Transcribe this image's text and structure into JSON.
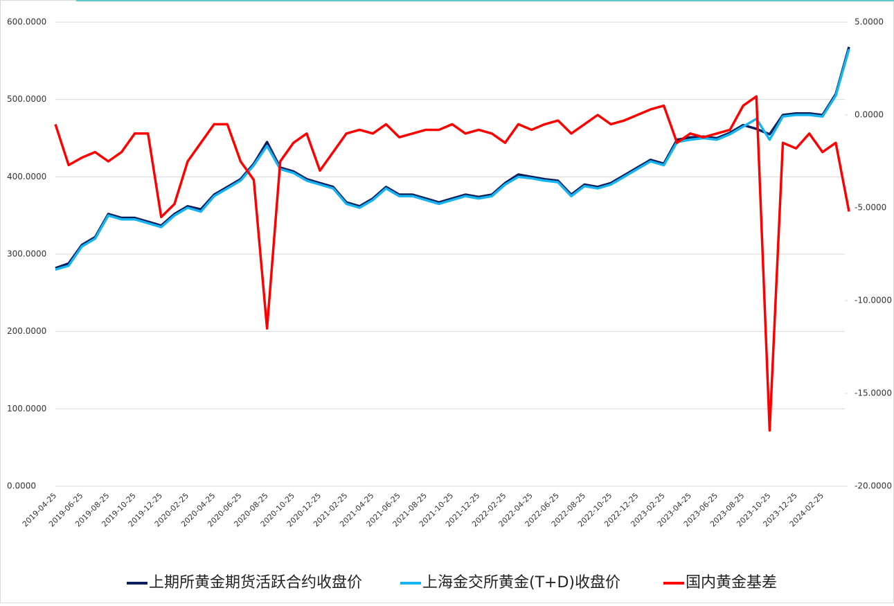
{
  "chart_data": {
    "type": "line",
    "categories": [
      "2019-04-25",
      null,
      "2019-06-25",
      null,
      "2019-08-25",
      null,
      "2019-10-25",
      null,
      "2019-12-25",
      null,
      "2020-02-25",
      null,
      "2020-04-25",
      null,
      "2020-06-25",
      null,
      "2020-08-25",
      null,
      "2020-10-25",
      null,
      "2020-12-25",
      null,
      "2021-02-25",
      null,
      "2021-04-25",
      null,
      "2021-06-25",
      null,
      "2021-08-25",
      null,
      "2021-10-25",
      null,
      "2021-12-25",
      null,
      "2022-02-25",
      null,
      "2022-04-25",
      null,
      "2022-06-25",
      null,
      "2022-08-25",
      null,
      "2022-10-25",
      null,
      "2022-12-25",
      null,
      "2023-02-25",
      null,
      "2023-04-25",
      null,
      "2023-06-25",
      null,
      "2023-08-25",
      null,
      "2023-10-25",
      null,
      "2023-12-25",
      null,
      "2024-02-25",
      null,
      null
    ],
    "series": [
      {
        "name": "上期所黄金期货活跃合约收盘价",
        "color": "#0d1f5c",
        "axis": "y",
        "values": [
          282,
          288,
          312,
          322,
          352,
          347,
          347,
          342,
          337,
          352,
          362,
          358,
          377,
          387,
          397,
          417,
          445,
          412,
          407,
          397,
          392,
          387,
          367,
          362,
          372,
          387,
          377,
          377,
          372,
          367,
          372,
          377,
          374,
          377,
          392,
          403,
          400,
          397,
          395,
          377,
          390,
          387,
          392,
          402,
          412,
          422,
          417,
          448,
          451,
          452,
          450,
          457,
          467,
          462,
          455,
          480,
          482,
          482,
          480,
          507,
          568
        ]
      },
      {
        "name": "上海金交所黄金(T+D)收盘价",
        "color": "#16b4f0",
        "axis": "y",
        "values": [
          280,
          285,
          310,
          320,
          350,
          345,
          345,
          340,
          335,
          350,
          360,
          355,
          375,
          385,
          395,
          415,
          440,
          410,
          405,
          395,
          390,
          385,
          365,
          360,
          370,
          385,
          375,
          375,
          370,
          365,
          370,
          375,
          372,
          375,
          390,
          400,
          398,
          395,
          393,
          375,
          388,
          385,
          390,
          400,
          410,
          420,
          415,
          445,
          448,
          450,
          448,
          455,
          465,
          475,
          448,
          478,
          480,
          480,
          478,
          505,
          565
        ]
      },
      {
        "name": "国内黄金基差",
        "color": "#ff0000",
        "axis": "y2",
        "values": [
          -0.5,
          -2.7,
          -2.3,
          -2.0,
          -2.5,
          -2.0,
          -1.0,
          -1.0,
          -5.5,
          -4.8,
          -2.5,
          -1.5,
          -0.5,
          -0.5,
          -2.5,
          -3.5,
          -11.5,
          -2.5,
          -1.5,
          -1.0,
          -3.0,
          -2.0,
          -1.0,
          -0.8,
          -1.0,
          -0.5,
          -1.2,
          -1.0,
          -0.8,
          -0.8,
          -0.5,
          -1.0,
          -0.8,
          -1.0,
          -1.5,
          -0.5,
          -0.8,
          -0.5,
          -0.3,
          -1.0,
          -0.5,
          0.0,
          -0.5,
          -0.3,
          0.0,
          0.3,
          0.5,
          -1.5,
          -1.0,
          -1.2,
          -1.0,
          -0.8,
          0.5,
          1.0,
          -17.0,
          -1.5,
          -1.8,
          -1.0,
          -2.0,
          -1.5,
          -5.2
        ]
      }
    ],
    "ylim": [
      0,
      600
    ],
    "yticks": [
      {
        "value": 0,
        "label": "0.0000"
      },
      {
        "value": 100,
        "label": "100.0000"
      },
      {
        "value": 200,
        "label": "200.0000"
      },
      {
        "value": 300,
        "label": "300.0000"
      },
      {
        "value": 400,
        "label": "400.0000"
      },
      {
        "value": 500,
        "label": "500.0000"
      },
      {
        "value": 600,
        "label": "600.0000"
      }
    ],
    "y2lim": [
      -20,
      5
    ],
    "y2ticks": [
      {
        "value": -20,
        "label": "-20.0000"
      },
      {
        "value": -15,
        "label": "-15.0000"
      },
      {
        "value": -10,
        "label": "-10.0000"
      },
      {
        "value": -5,
        "label": "-5.0000"
      },
      {
        "value": 0,
        "label": "0.0000"
      },
      {
        "value": 5,
        "label": "5.0000"
      }
    ],
    "grid": true,
    "legend": "bottom"
  }
}
